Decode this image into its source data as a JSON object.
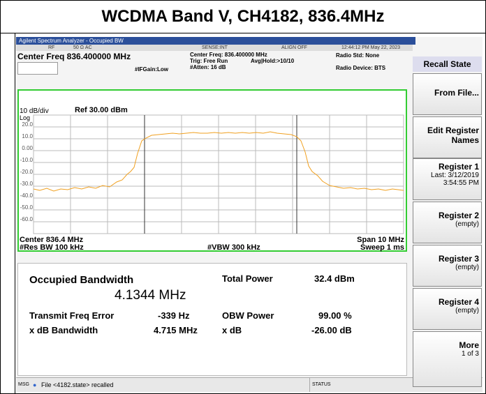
{
  "header": {
    "title": "WCDMA Band V, CH4182, 836.4MHz"
  },
  "window": {
    "title": "Agilent Spectrum Analyzer - Occupied BW",
    "status": {
      "rf": "RF",
      "input": "50 Ω  AC",
      "sense": "SENSE:INT",
      "align": "ALIGN OFF",
      "time": "12:44:12 PM May 22, 2023"
    },
    "settings": {
      "center": "Center Freq 836.400000 MHz",
      "center_freq": "Center Freq: 836.400000 MHz",
      "trig": "Trig: Free Run",
      "avg": "Avg|Hold:>10/10",
      "atten": "#Atten: 16 dB",
      "ifgain": "#IFGain:Low",
      "radio_std": "Radio Std: None",
      "radio_device": "Radio Device: BTS"
    },
    "graph": {
      "scale": "10 dB/div",
      "ref": "Ref 30.00 dBm",
      "log": "Log",
      "ylabels": [
        "20.0",
        "10.0",
        "0.00",
        "-10.0",
        "-20.0",
        "-30.0",
        "-40.0",
        "-50.0",
        "-60.0"
      ],
      "center": "Center  836.4 MHz",
      "span": "Span 10 MHz",
      "rbw": "#Res BW  100 kHz",
      "vbw": "#VBW  300 kHz",
      "sweep": "Sweep  1 ms"
    },
    "results": {
      "obw_label": "Occupied Bandwidth",
      "obw_value": "4.1344 MHz",
      "total_power_label": "Total Power",
      "total_power": "32.4 dBm",
      "freq_error_label": "Transmit Freq Error",
      "freq_error": "-339 Hz",
      "obw_power_label": "OBW Power",
      "obw_power": "99.00 %",
      "xdb_bw_label": "x dB Bandwidth",
      "xdb_bw": "4.715 MHz",
      "xdb_label": "x dB",
      "xdb": "-26.00 dB"
    },
    "softkeys": {
      "header": "Recall State",
      "keys": [
        [
          "From File..."
        ],
        [
          "Edit Register",
          "Names"
        ],
        [
          "Register 1",
          "Last: 3/12/2019",
          "3:54:55 PM"
        ],
        [
          "Register 2",
          "(empty)"
        ],
        [
          "Register 3",
          "(empty)"
        ],
        [
          "Register 4",
          "(empty)"
        ],
        [
          "More",
          "1 of 3"
        ]
      ]
    },
    "statusbar": {
      "msg": "MSG",
      "message": "File <4182.state> recalled",
      "status": "STATUS"
    }
  }
}
